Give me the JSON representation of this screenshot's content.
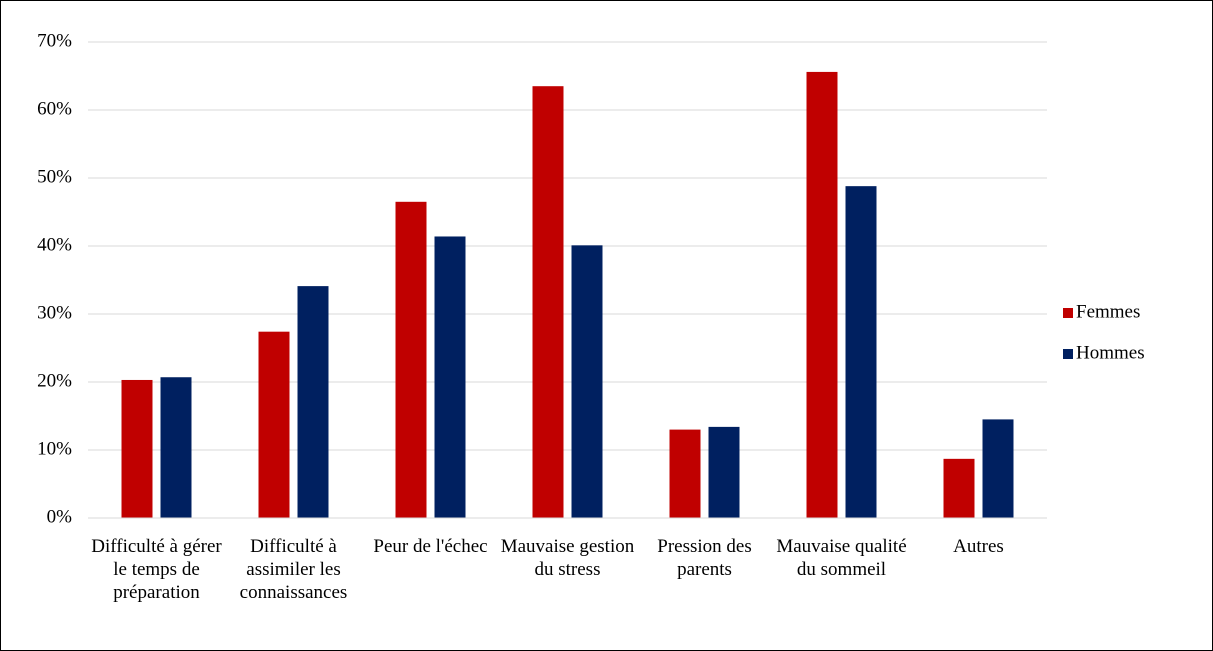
{
  "chart_data": {
    "type": "bar",
    "categories": [
      "Difficulté à gérer le temps de préparation",
      "Difficulté à assimiler les connaissances",
      "Peur de l'échec",
      "Mauvaise gestion du stress",
      "Pression des parents",
      "Mauvaise qualité du sommeil",
      "Autres"
    ],
    "series": [
      {
        "name": "Femmes",
        "color": "#c00000",
        "values": [
          20.3,
          27.4,
          46.5,
          63.5,
          13.0,
          65.6,
          8.7
        ]
      },
      {
        "name": "Hommes",
        "color": "#002060",
        "values": [
          20.7,
          34.1,
          41.4,
          40.1,
          13.4,
          48.8,
          14.5
        ]
      }
    ],
    "ylim": [
      0,
      70
    ],
    "yticks": [
      {
        "value": 0,
        "label": "0%"
      },
      {
        "value": 10,
        "label": "10%"
      },
      {
        "value": 20,
        "label": "20%"
      },
      {
        "value": 30,
        "label": "30%"
      },
      {
        "value": 40,
        "label": "40%"
      },
      {
        "value": 50,
        "label": "50%"
      },
      {
        "value": 60,
        "label": "60%"
      },
      {
        "value": 70,
        "label": "70%"
      }
    ],
    "grid": true,
    "legend": "right"
  }
}
